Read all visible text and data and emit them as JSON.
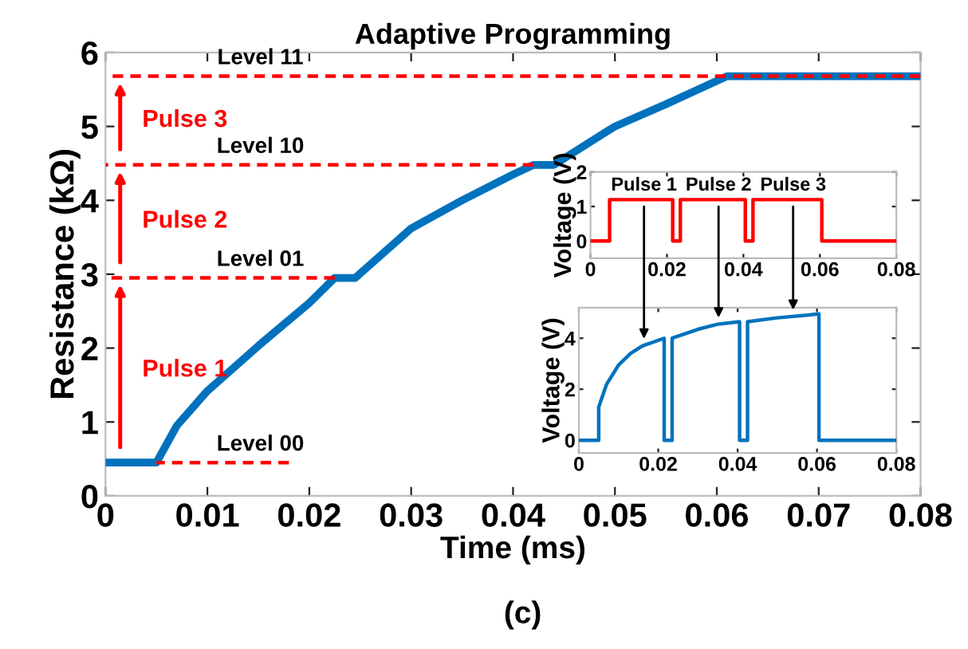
{
  "chart_data": [
    {
      "type": "line",
      "title": "Adaptive Programming",
      "xlabel": "Time (ms)",
      "ylabel": "Resistance (kΩ)",
      "xlim": [
        0,
        0.08
      ],
      "ylim": [
        0,
        6
      ],
      "xticks": [
        0,
        0.01,
        0.02,
        0.03,
        0.04,
        0.05,
        0.06,
        0.07,
        0.08
      ],
      "yticks": [
        0,
        1,
        2,
        3,
        4,
        5,
        6
      ],
      "grid": false,
      "legend": false,
      "series": [
        {
          "color": "#0072bd",
          "x": [
            0,
            0.005,
            0.007,
            0.01,
            0.015,
            0.02,
            0.0225,
            0.0245,
            0.03,
            0.035,
            0.04,
            0.042,
            0.044,
            0.05,
            0.055,
            0.061,
            0.08
          ],
          "values": [
            0.45,
            0.45,
            0.95,
            1.42,
            2.03,
            2.61,
            2.95,
            2.95,
            3.62,
            4.0,
            4.35,
            4.48,
            4.48,
            5.0,
            5.3,
            5.68,
            5.68
          ]
        },
        {
          "name": "Level 00",
          "color": "#ff0000",
          "line_style": "dashed",
          "x": [
            0.005,
            0.018
          ],
          "values": [
            0.45,
            0.45
          ]
        },
        {
          "name": "Level 01",
          "color": "#ff0000",
          "line_style": "dashed",
          "x": [
            0,
            0.0225
          ],
          "values": [
            2.95,
            2.95
          ]
        },
        {
          "name": "Level 10",
          "color": "#ff0000",
          "line_style": "dashed",
          "x": [
            0,
            0.042
          ],
          "values": [
            4.48,
            4.48
          ]
        },
        {
          "name": "Level 11",
          "color": "#ff0000",
          "line_style": "dashed",
          "x": [
            0,
            0.08
          ],
          "values": [
            5.68,
            5.68
          ]
        }
      ],
      "annotations": [
        "Pulse 1",
        "Pulse 2",
        "Pulse 3",
        "(c)"
      ]
    },
    {
      "type": "line",
      "ylabel": "Voltage (V)",
      "xlim": [
        0,
        0.08
      ],
      "ylim": [
        -0.5,
        2
      ],
      "xticks": [
        0,
        0.02,
        0.04,
        0.06,
        0.08
      ],
      "yticks": [
        0,
        1,
        2
      ],
      "grid": false,
      "legend": false,
      "series": [
        {
          "color": "#ff0000",
          "x": [
            0,
            0.005,
            0.005,
            0.0215,
            0.0215,
            0.0235,
            0.0235,
            0.0405,
            0.0405,
            0.0425,
            0.0425,
            0.0605,
            0.0605,
            0.08
          ],
          "values": [
            0,
            0,
            1.2,
            1.2,
            0,
            0,
            1.2,
            1.2,
            0,
            0,
            1.2,
            1.2,
            0,
            0
          ]
        }
      ],
      "annotations": [
        {
          "text": "Pulse 1",
          "x": 0.014,
          "y": 1.2
        },
        {
          "text": "Pulse 2",
          "x": 0.0335,
          "y": 1.2
        },
        {
          "text": "Pulse 3",
          "x": 0.053,
          "y": 1.2
        }
      ]
    },
    {
      "type": "line",
      "ylabel": "Voltage (V)",
      "xlim": [
        0,
        0.08
      ],
      "ylim": [
        -0.5,
        5.2
      ],
      "xticks": [
        0,
        0.02,
        0.04,
        0.06,
        0.08
      ],
      "yticks": [
        0,
        2,
        4
      ],
      "grid": false,
      "legend": false,
      "series": [
        {
          "color": "#0072bd",
          "x": [
            0,
            0.005,
            0.005,
            0.007,
            0.01,
            0.013,
            0.016,
            0.0215,
            0.0215,
            0.0235,
            0.0235,
            0.03,
            0.035,
            0.0405,
            0.0405,
            0.0425,
            0.0425,
            0.05,
            0.0605,
            0.0605,
            0.08
          ],
          "values": [
            0,
            0,
            1.3,
            2.2,
            2.95,
            3.4,
            3.7,
            4.0,
            0,
            0,
            4.0,
            4.35,
            4.55,
            4.65,
            0,
            0,
            4.65,
            4.8,
            4.95,
            0,
            0
          ]
        }
      ]
    }
  ]
}
